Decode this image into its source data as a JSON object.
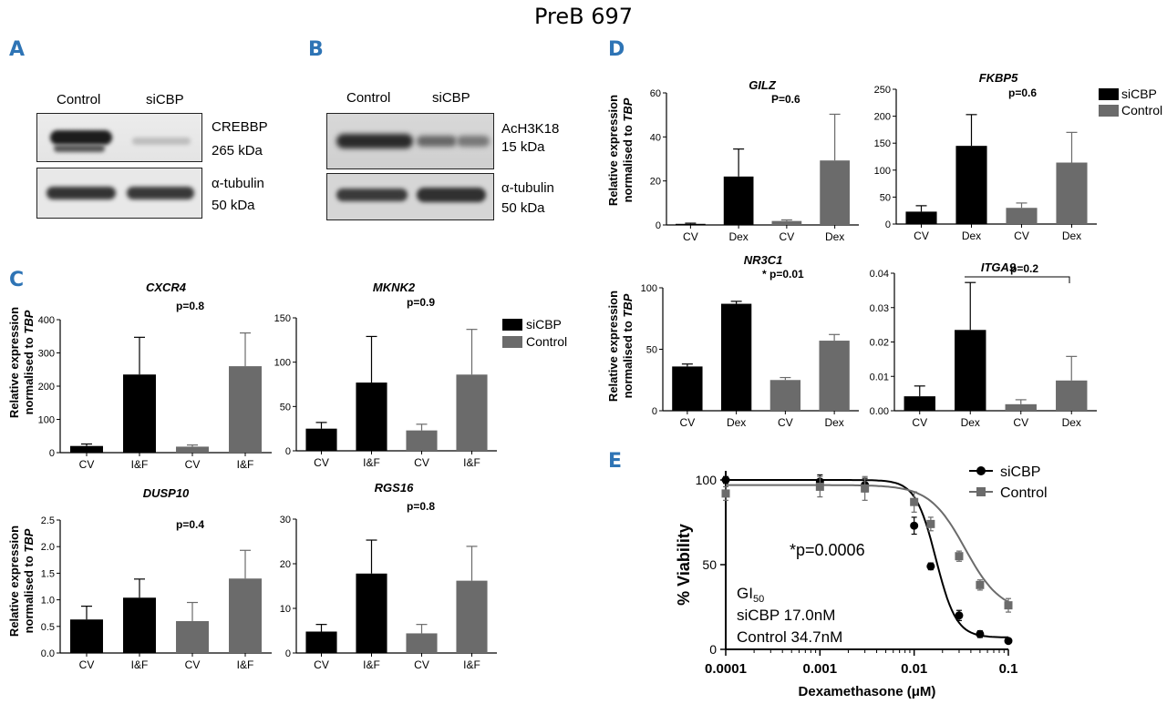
{
  "figure_title": "PreB 697",
  "panels": {
    "A": {
      "label": "A",
      "lanes": [
        "Control",
        "siCBP"
      ],
      "blots": [
        {
          "protein": "CREBBP",
          "size": "265 kDa"
        },
        {
          "protein": "α-tubulin",
          "size": "50 kDa"
        }
      ]
    },
    "B": {
      "label": "B",
      "lanes": [
        "Control",
        "siCBP"
      ],
      "blots": [
        {
          "protein": "AcH3K18",
          "size": "15 kDa"
        },
        {
          "protein": "α-tubulin",
          "size": "50 kDa"
        }
      ]
    },
    "C": {
      "label": "C",
      "ylabel_line1": "Relative expression",
      "ylabel_line2": "normalised to ",
      "ylabel_gene": "TBP"
    },
    "D": {
      "label": "D",
      "ylabel_line1": "Relative expression",
      "ylabel_line2": "normalised to ",
      "ylabel_gene": "TBP"
    },
    "E": {
      "label": "E"
    }
  },
  "legend": {
    "sicbp": "siCBP",
    "control": "Control"
  },
  "colors": {
    "sicbp": "#000000",
    "control": "#6b6b6b",
    "panel_label": "#2e74b5"
  },
  "chart_data": [
    {
      "id": "CXCR4",
      "type": "bar",
      "panel": "C",
      "title": "CXCR4",
      "pvalue": "p=0.8",
      "categories": [
        "CV",
        "I&F",
        "CV",
        "I&F"
      ],
      "groups": [
        "siCBP",
        "siCBP",
        "Control",
        "Control"
      ],
      "values": [
        20,
        235,
        18,
        260
      ],
      "errors": [
        6,
        112,
        5,
        100
      ],
      "ylim": [
        0,
        400
      ],
      "yticks": [
        0,
        100,
        200,
        300,
        400
      ],
      "ytick_labels": [
        "0",
        "100",
        "200",
        "300",
        "400"
      ]
    },
    {
      "id": "MKNK2",
      "type": "bar",
      "panel": "C",
      "title": "MKNK2",
      "pvalue": "p=0.9",
      "categories": [
        "CV",
        "I&F",
        "CV",
        "I&F"
      ],
      "groups": [
        "siCBP",
        "siCBP",
        "Control",
        "Control"
      ],
      "values": [
        25,
        77,
        23,
        86
      ],
      "errors": [
        7,
        52,
        7,
        51
      ],
      "ylim": [
        0,
        150
      ],
      "yticks": [
        0,
        50,
        100,
        150
      ],
      "ytick_labels": [
        "0",
        "50",
        "100",
        "150"
      ]
    },
    {
      "id": "DUSP10",
      "type": "bar",
      "panel": "C",
      "title": "DUSP10",
      "pvalue": "p=0.4",
      "categories": [
        "CV",
        "I&F",
        "CV",
        "I&F"
      ],
      "groups": [
        "siCBP",
        "siCBP",
        "Control",
        "Control"
      ],
      "values": [
        0.63,
        1.04,
        0.6,
        1.4
      ],
      "errors": [
        0.25,
        0.35,
        0.35,
        0.53
      ],
      "ylim": [
        0,
        2.5
      ],
      "yticks": [
        0,
        0.5,
        1.0,
        1.5,
        2.0,
        2.5
      ],
      "ytick_labels": [
        "0.0",
        "0.5",
        "1.0",
        "1.5",
        "2.0",
        "2.5"
      ]
    },
    {
      "id": "RGS16",
      "type": "bar",
      "panel": "C",
      "title": "RGS16",
      "pvalue": "p=0.8",
      "categories": [
        "CV",
        "I&F",
        "CV",
        "I&F"
      ],
      "groups": [
        "siCBP",
        "siCBP",
        "Control",
        "Control"
      ],
      "values": [
        4.8,
        17.8,
        4.4,
        16.2
      ],
      "errors": [
        1.6,
        7.5,
        2.0,
        7.7
      ],
      "ylim": [
        0,
        30
      ],
      "yticks": [
        0,
        10,
        20,
        30
      ],
      "ytick_labels": [
        "0",
        "10",
        "20",
        "30"
      ]
    },
    {
      "id": "GILZ",
      "type": "bar",
      "panel": "D",
      "title": "GILZ",
      "pvalue": "P=0.6",
      "categories": [
        "CV",
        "Dex",
        "CV",
        "Dex"
      ],
      "groups": [
        "siCBP",
        "siCBP",
        "Control",
        "Control"
      ],
      "values": [
        0.5,
        22,
        1.8,
        29.3
      ],
      "errors": [
        0.3,
        12.5,
        0.5,
        21
      ],
      "ylim": [
        0,
        60
      ],
      "yticks": [
        0,
        20,
        40,
        60
      ],
      "ytick_labels": [
        "0",
        "20",
        "40",
        "60"
      ]
    },
    {
      "id": "FKBP5",
      "type": "bar",
      "panel": "D",
      "title": "FKBP5",
      "pvalue": "p=0.6",
      "categories": [
        "CV",
        "Dex",
        "CV",
        "Dex"
      ],
      "groups": [
        "siCBP",
        "siCBP",
        "Control",
        "Control"
      ],
      "values": [
        23,
        145,
        30,
        114
      ],
      "errors": [
        11,
        58,
        9,
        56
      ],
      "ylim": [
        0,
        250
      ],
      "yticks": [
        0,
        50,
        100,
        150,
        200,
        250
      ],
      "ytick_labels": [
        "0",
        "50",
        "100",
        "150",
        "200",
        "250"
      ]
    },
    {
      "id": "NR3C1",
      "type": "bar",
      "panel": "D",
      "title": "NR3C1",
      "pvalue": "* p=0.01",
      "categories": [
        "CV",
        "Dex",
        "CV",
        "Dex"
      ],
      "groups": [
        "siCBP",
        "siCBP",
        "Control",
        "Control"
      ],
      "values": [
        36,
        87,
        25,
        57
      ],
      "errors": [
        2,
        2,
        2,
        5
      ],
      "ylim": [
        0,
        100
      ],
      "yticks": [
        0,
        50,
        100
      ],
      "ytick_labels": [
        "0",
        "50",
        "100"
      ]
    },
    {
      "id": "ITGA9",
      "type": "bar",
      "panel": "D",
      "title": "ITGA9",
      "pvalue": "p=0.2",
      "categories": [
        "CV",
        "Dex",
        "CV",
        "Dex"
      ],
      "groups": [
        "siCBP",
        "siCBP",
        "Control",
        "Control"
      ],
      "values": [
        0.0042,
        0.0235,
        0.0019,
        0.0088
      ],
      "errors": [
        0.003,
        0.0138,
        0.0013,
        0.007
      ],
      "ylim": [
        0,
        0.04
      ],
      "yticks": [
        0,
        0.01,
        0.02,
        0.03,
        0.04
      ],
      "ytick_labels": [
        "0.00",
        "0.01",
        "0.02",
        "0.03",
        "0.04"
      ]
    },
    {
      "id": "viability",
      "type": "scatter",
      "panel": "E",
      "xlabel": "Dexamethasone (μM)",
      "ylabel": "% Viability",
      "xscale": "log",
      "xlim": [
        0.0001,
        0.1
      ],
      "ylim": [
        0,
        100
      ],
      "xticks": [
        0.0001,
        0.001,
        0.01,
        0.1
      ],
      "xtick_labels": [
        "0.0001",
        "0.001",
        "0.01",
        "0.1"
      ],
      "yticks": [
        0,
        50,
        100
      ],
      "ytick_labels": [
        "0",
        "50",
        "100"
      ],
      "annotation": "*p=0.0006",
      "gi50_title": "GI",
      "gi50_sub": "50",
      "gi50_lines": [
        "siCBP 17.0nM",
        "Control 34.7nM"
      ],
      "series": [
        {
          "name": "siCBP",
          "marker": "circle",
          "ec50": 0.017,
          "top": 100,
          "bottom": 7,
          "hill": 4.0,
          "x": [
            0.0001,
            0.001,
            0.003,
            0.01,
            0.015,
            0.03,
            0.05,
            0.1
          ],
          "y": [
            100,
            99,
            97,
            73,
            49,
            20,
            9,
            5
          ],
          "err": [
            2,
            4,
            4,
            5,
            2,
            3,
            2,
            1
          ]
        },
        {
          "name": "Control",
          "marker": "square",
          "ec50": 0.0347,
          "top": 97,
          "bottom": 22,
          "hill": 2.3,
          "x": [
            0.0001,
            0.001,
            0.003,
            0.01,
            0.015,
            0.03,
            0.05,
            0.1
          ],
          "y": [
            92,
            96,
            95,
            87,
            74,
            55,
            38,
            26
          ],
          "err": [
            4,
            6,
            7,
            6,
            4,
            3,
            3,
            4
          ]
        }
      ]
    }
  ]
}
